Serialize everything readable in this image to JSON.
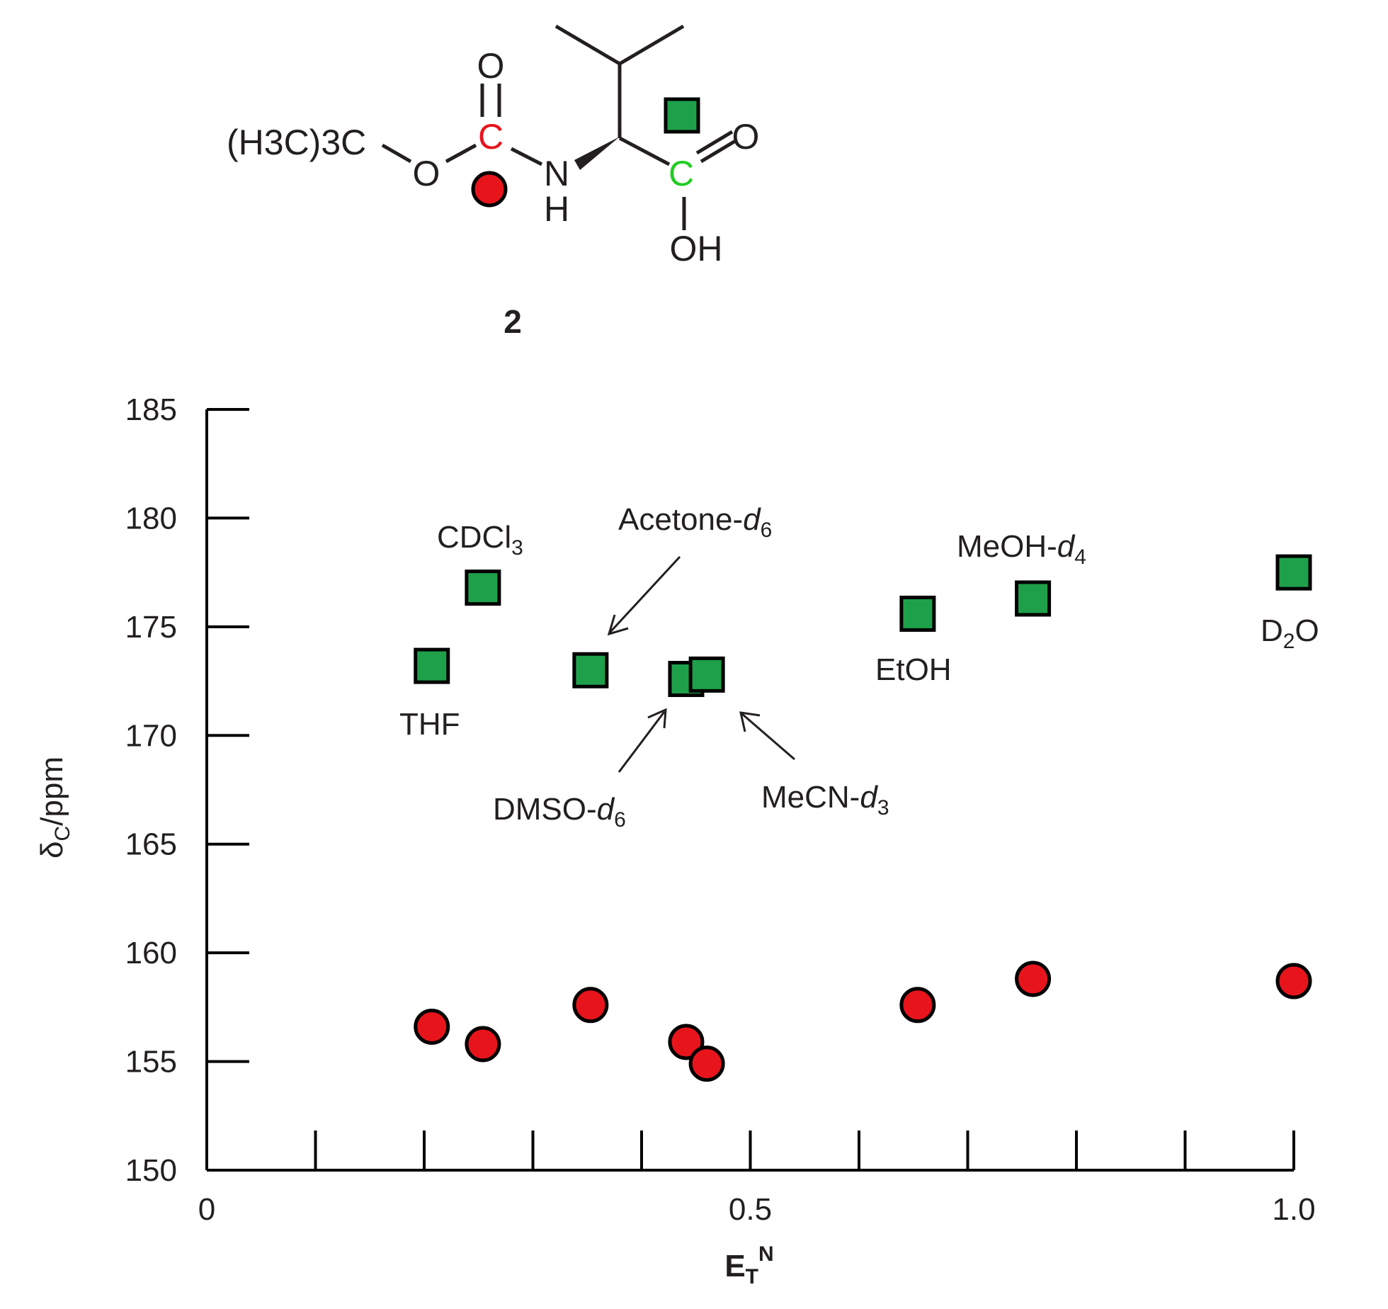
{
  "compound": {
    "label": "2",
    "boc_group": "(H3C)3C",
    "atoms": {
      "carbonyl_o": "O",
      "ester_o": "O",
      "carbonyl_c": "C",
      "n": "N",
      "nh_h": "H",
      "acid_c": "C",
      "acid_o": "O",
      "oh": "OH"
    },
    "colors": {
      "carbamate_c": "#e8141c",
      "acid_c": "#22cc22"
    }
  },
  "chart_data": {
    "type": "scatter",
    "xlabel": "E",
    "xlabel_sub": "T",
    "xlabel_sup": "N",
    "ylabel": "δ",
    "ylabel_sub": "C",
    "ylabel_unit": "/ppm",
    "xlim": [
      0,
      1.0
    ],
    "ylim": [
      150,
      185
    ],
    "x_ticks": [
      0,
      0.1,
      0.2,
      0.3,
      0.4,
      0.5,
      0.6,
      0.7,
      0.8,
      0.9,
      1.0
    ],
    "x_tick_labels": [
      {
        "x": 0,
        "label": "0"
      },
      {
        "x": 0.5,
        "label": "0.5"
      },
      {
        "x": 1.0,
        "label": "1.0"
      }
    ],
    "y_ticks": [
      150,
      155,
      160,
      165,
      170,
      175,
      180,
      185
    ],
    "y_tick_labels": [
      "150",
      "155",
      "160",
      "165",
      "170",
      "175",
      "180",
      "185"
    ],
    "grid": false,
    "series": [
      {
        "marker": "square",
        "color": "#1ea04a",
        "points": [
          {
            "x": 0.207,
            "y": 173.2
          },
          {
            "x": 0.254,
            "y": 176.8
          },
          {
            "x": 0.353,
            "y": 173.0
          },
          {
            "x": 0.441,
            "y": 172.6
          },
          {
            "x": 0.46,
            "y": 172.8
          },
          {
            "x": 0.654,
            "y": 175.6
          },
          {
            "x": 0.76,
            "y": 176.3
          },
          {
            "x": 1.0,
            "y": 177.5
          }
        ]
      },
      {
        "marker": "circle",
        "color": "#e8141c",
        "points": [
          {
            "x": 0.207,
            "y": 156.6
          },
          {
            "x": 0.254,
            "y": 155.8
          },
          {
            "x": 0.353,
            "y": 157.6
          },
          {
            "x": 0.441,
            "y": 155.9
          },
          {
            "x": 0.46,
            "y": 154.9
          },
          {
            "x": 0.654,
            "y": 157.6
          },
          {
            "x": 0.76,
            "y": 158.8
          },
          {
            "x": 1.0,
            "y": 158.7
          }
        ]
      }
    ],
    "annotations": [
      {
        "base": "THF",
        "sub": "",
        "italic": ""
      },
      {
        "base": "CDCl",
        "sub": "3",
        "italic": ""
      },
      {
        "base": "Acetone-",
        "italic": "d",
        "sub": "6"
      },
      {
        "base": "DMSO-",
        "italic": "d",
        "sub": "6"
      },
      {
        "base": "MeCN-",
        "italic": "d",
        "sub": "3"
      },
      {
        "base": "EtOH",
        "sub": "",
        "italic": ""
      },
      {
        "base": "MeOH-",
        "italic": "d",
        "sub": "4"
      },
      {
        "base": "D",
        "sub": "2",
        "tail": "O",
        "italic": ""
      }
    ]
  }
}
